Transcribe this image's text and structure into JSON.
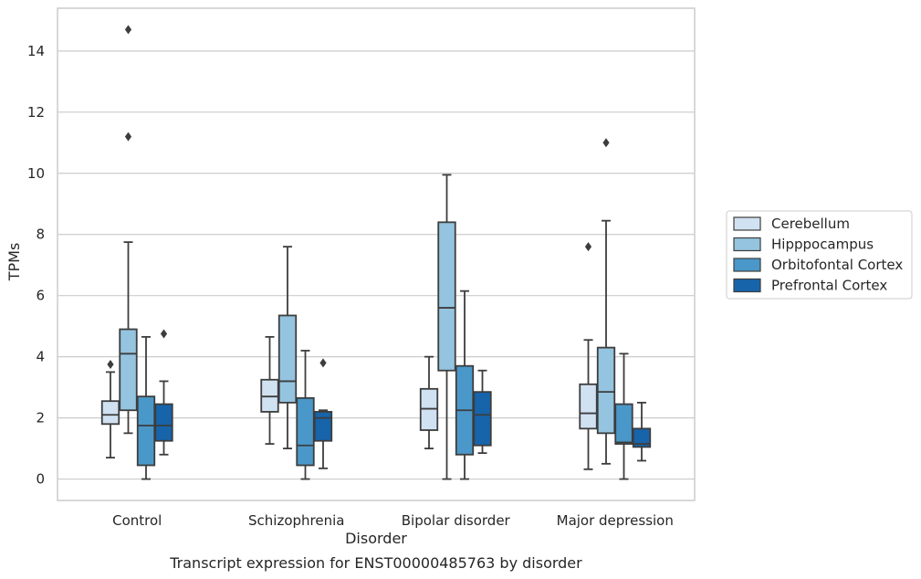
{
  "chart_data": {
    "type": "box",
    "title": "",
    "caption": "Transcript expression for ENST00000485763 by disorder",
    "xlabel": "Disorder",
    "ylabel": "TPMs",
    "ylim": [
      -0.7,
      15.4
    ],
    "yticks": [
      0,
      2,
      4,
      6,
      8,
      10,
      12,
      14
    ],
    "grid": "horizontal",
    "legend_position": "right",
    "categories": [
      "Control",
      "Schizophrenia",
      "Bipolar disorder",
      "Major depression"
    ],
    "series": [
      {
        "name": "Cerebellum",
        "color": "#d0e1f2",
        "boxes": [
          {
            "whislo": 0.7,
            "q1": 1.8,
            "med": 2.1,
            "q3": 2.55,
            "whishi": 3.5,
            "fliers": [
              3.75
            ]
          },
          {
            "whislo": 1.15,
            "q1": 2.2,
            "med": 2.7,
            "q3": 3.25,
            "whishi": 4.65,
            "fliers": []
          },
          {
            "whislo": 1.0,
            "q1": 1.6,
            "med": 2.3,
            "q3": 2.95,
            "whishi": 4.0,
            "fliers": []
          },
          {
            "whislo": 0.32,
            "q1": 1.65,
            "med": 2.15,
            "q3": 3.1,
            "whishi": 4.55,
            "fliers": [
              7.6
            ]
          }
        ]
      },
      {
        "name": "Hipppocampus",
        "color": "#94c4df",
        "boxes": [
          {
            "whislo": 1.5,
            "q1": 2.25,
            "med": 4.1,
            "q3": 4.9,
            "whishi": 7.75,
            "fliers": [
              14.7,
              11.2
            ]
          },
          {
            "whislo": 1.0,
            "q1": 2.5,
            "med": 3.2,
            "q3": 5.35,
            "whishi": 7.6,
            "fliers": []
          },
          {
            "whislo": 0.0,
            "q1": 3.55,
            "med": 5.6,
            "q3": 8.4,
            "whishi": 9.95,
            "fliers": []
          },
          {
            "whislo": 0.5,
            "q1": 1.5,
            "med": 2.85,
            "q3": 4.3,
            "whishi": 8.45,
            "fliers": [
              11.0
            ]
          }
        ]
      },
      {
        "name": "Orbitofontal Cortex",
        "color": "#4a98c9",
        "boxes": [
          {
            "whislo": 0.0,
            "q1": 0.45,
            "med": 1.75,
            "q3": 2.7,
            "whishi": 4.65,
            "fliers": []
          },
          {
            "whislo": 0.0,
            "q1": 0.45,
            "med": 1.1,
            "q3": 2.65,
            "whishi": 4.2,
            "fliers": []
          },
          {
            "whislo": 0.0,
            "q1": 0.8,
            "med": 2.25,
            "q3": 3.7,
            "whishi": 6.15,
            "fliers": []
          },
          {
            "whislo": 0.0,
            "q1": 1.15,
            "med": 1.2,
            "q3": 2.45,
            "whishi": 4.1,
            "fliers": []
          }
        ]
      },
      {
        "name": "Prefrontal Cortex",
        "color": "#1764ab",
        "boxes": [
          {
            "whislo": 0.8,
            "q1": 1.25,
            "med": 1.75,
            "q3": 2.45,
            "whishi": 3.2,
            "fliers": [
              4.75
            ]
          },
          {
            "whislo": 0.35,
            "q1": 1.25,
            "med": 2.0,
            "q3": 2.2,
            "whishi": 2.25,
            "fliers": [
              3.8
            ]
          },
          {
            "whislo": 0.85,
            "q1": 1.1,
            "med": 2.1,
            "q3": 2.85,
            "whishi": 3.55,
            "fliers": []
          },
          {
            "whislo": 0.6,
            "q1": 1.05,
            "med": 1.15,
            "q3": 1.65,
            "whishi": 2.5,
            "fliers": []
          }
        ]
      }
    ]
  }
}
